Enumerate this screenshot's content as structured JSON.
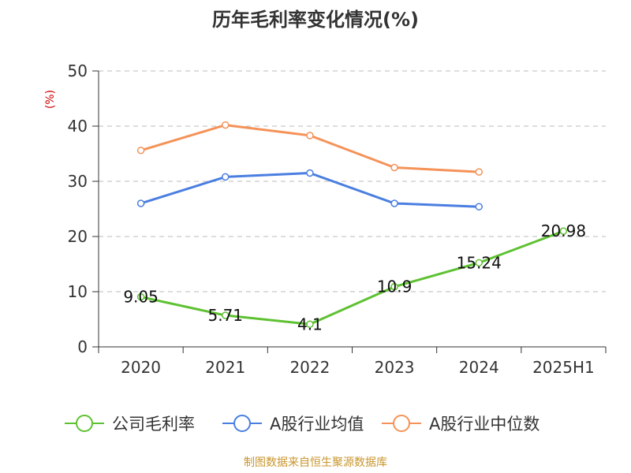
{
  "chart_data": {
    "type": "line",
    "title": "历年毛利率变化情况(%)",
    "ylabel": "(%)",
    "xlabel": "",
    "ylim": [
      0,
      50
    ],
    "yticks": [
      0,
      10,
      20,
      30,
      40,
      50
    ],
    "grid": true,
    "legend_position": "bottom",
    "categories": [
      "2020",
      "2021",
      "2022",
      "2023",
      "2024",
      "2025H1"
    ],
    "series": [
      {
        "name": "公司毛利率",
        "color": "#5ec132",
        "values": [
          9.05,
          5.71,
          4.1,
          10.9,
          15.24,
          20.98
        ],
        "labels": [
          "9.05",
          "5.71",
          "4.1",
          "10.9",
          "15.24",
          "20.98"
        ],
        "show_labels": true
      },
      {
        "name": "A股行业均值",
        "color": "#4a7ee0",
        "values": [
          26.0,
          30.8,
          31.5,
          26.0,
          25.4,
          null
        ],
        "show_labels": false
      },
      {
        "name": "A股行业中位数",
        "color": "#f59258",
        "values": [
          35.6,
          40.2,
          38.3,
          32.5,
          31.7,
          null
        ],
        "show_labels": false
      }
    ],
    "source": "制图数据来自恒生聚源数据库"
  }
}
